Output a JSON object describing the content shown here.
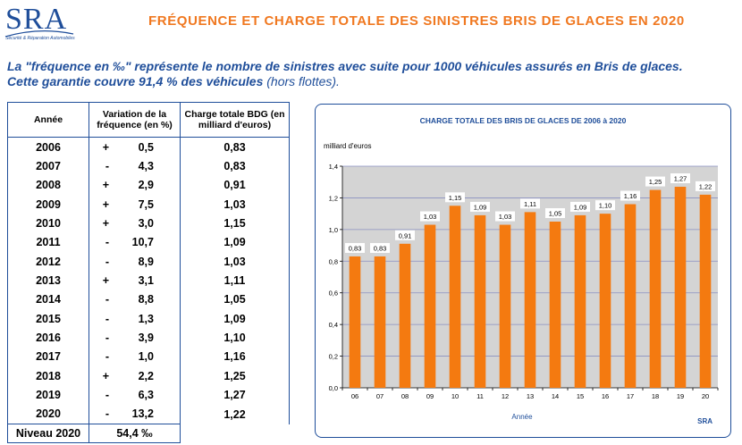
{
  "logo": {
    "text": "SRA",
    "subtitle": "Sécurité & Réparation Automobiles"
  },
  "title": "FRÉQUENCE  ET  CHARGE TOTALE  DES  SINISTRES  BRIS  DE  GLACES  EN  2020",
  "note": {
    "line1": "La \"fréquence en ‰\" représente le nombre de sinistres avec suite pour 1000 véhicules assurés en Bris de glaces.",
    "line2_bold": "Cette garantie couvre 91,4 % des véhicules ",
    "line2_light": "(hors flottes)."
  },
  "table": {
    "headers": {
      "year": "Année",
      "variation": "Variation de la fréquence (en %)",
      "charge": "Charge totale BDG (en milliard d'euros)"
    },
    "rows": [
      {
        "year": "2006",
        "sign": "+",
        "value": "0,5",
        "charge": "0,83"
      },
      {
        "year": "2007",
        "sign": "-",
        "value": "4,3",
        "charge": "0,83"
      },
      {
        "year": "2008",
        "sign": "+",
        "value": "2,9",
        "charge": "0,91"
      },
      {
        "year": "2009",
        "sign": "+",
        "value": "7,5",
        "charge": "1,03"
      },
      {
        "year": "2010",
        "sign": "+",
        "value": "3,0",
        "charge": "1,15"
      },
      {
        "year": "2011",
        "sign": "-",
        "value": "10,7",
        "charge": "1,09"
      },
      {
        "year": "2012",
        "sign": "-",
        "value": "8,9",
        "charge": "1,03"
      },
      {
        "year": "2013",
        "sign": "+",
        "value": "3,1",
        "charge": "1,11"
      },
      {
        "year": "2014",
        "sign": "-",
        "value": "8,8",
        "charge": "1,05"
      },
      {
        "year": "2015",
        "sign": "-",
        "value": "1,3",
        "charge": "1,09"
      },
      {
        "year": "2016",
        "sign": "-",
        "value": "3,9",
        "charge": "1,10"
      },
      {
        "year": "2017",
        "sign": "-",
        "value": "1,0",
        "charge": "1,16"
      },
      {
        "year": "2018",
        "sign": "+",
        "value": "2,2",
        "charge": "1,25"
      },
      {
        "year": "2019",
        "sign": "-",
        "value": "6,3",
        "charge": "1,27"
      },
      {
        "year": "2020",
        "sign": "-",
        "value": "13,2",
        "charge": "1,22"
      }
    ],
    "level_label": "Niveau 2020",
    "level_value": "54,4 ‰"
  },
  "colors": {
    "bar": "#f47a10",
    "accent": "#1f4e9a",
    "title": "#f07820",
    "plot_bg": "#d4d4d4"
  },
  "chart_data": {
    "type": "bar",
    "title": "CHARGE TOTALE DES BRIS DE GLACES DE 2006  à  2020",
    "ylabel": "milliard d'euros",
    "xlabel": "Année",
    "source": "SRA",
    "categories": [
      "06",
      "07",
      "08",
      "09",
      "10",
      "11",
      "12",
      "13",
      "14",
      "15",
      "16",
      "17",
      "18",
      "19",
      "20"
    ],
    "values": [
      0.83,
      0.83,
      0.91,
      1.03,
      1.15,
      1.09,
      1.03,
      1.11,
      1.05,
      1.09,
      1.1,
      1.16,
      1.25,
      1.27,
      1.22
    ],
    "value_labels": [
      "0,83",
      "0,83",
      "0,91",
      "1,03",
      "1,15",
      "1,09",
      "1,03",
      "1,11",
      "1,05",
      "1,09",
      "1,10",
      "1,16",
      "1,25",
      "1,27",
      "1,22"
    ],
    "ylim": [
      0,
      1.4
    ],
    "yticks": [
      0,
      0.2,
      0.4,
      0.6,
      0.8,
      1.0,
      1.2,
      1.4
    ],
    "ytick_labels": [
      "0,0",
      "0,2",
      "0,4",
      "0,6",
      "0,8",
      "1,0",
      "1,2",
      "1,4"
    ],
    "grid": true
  }
}
